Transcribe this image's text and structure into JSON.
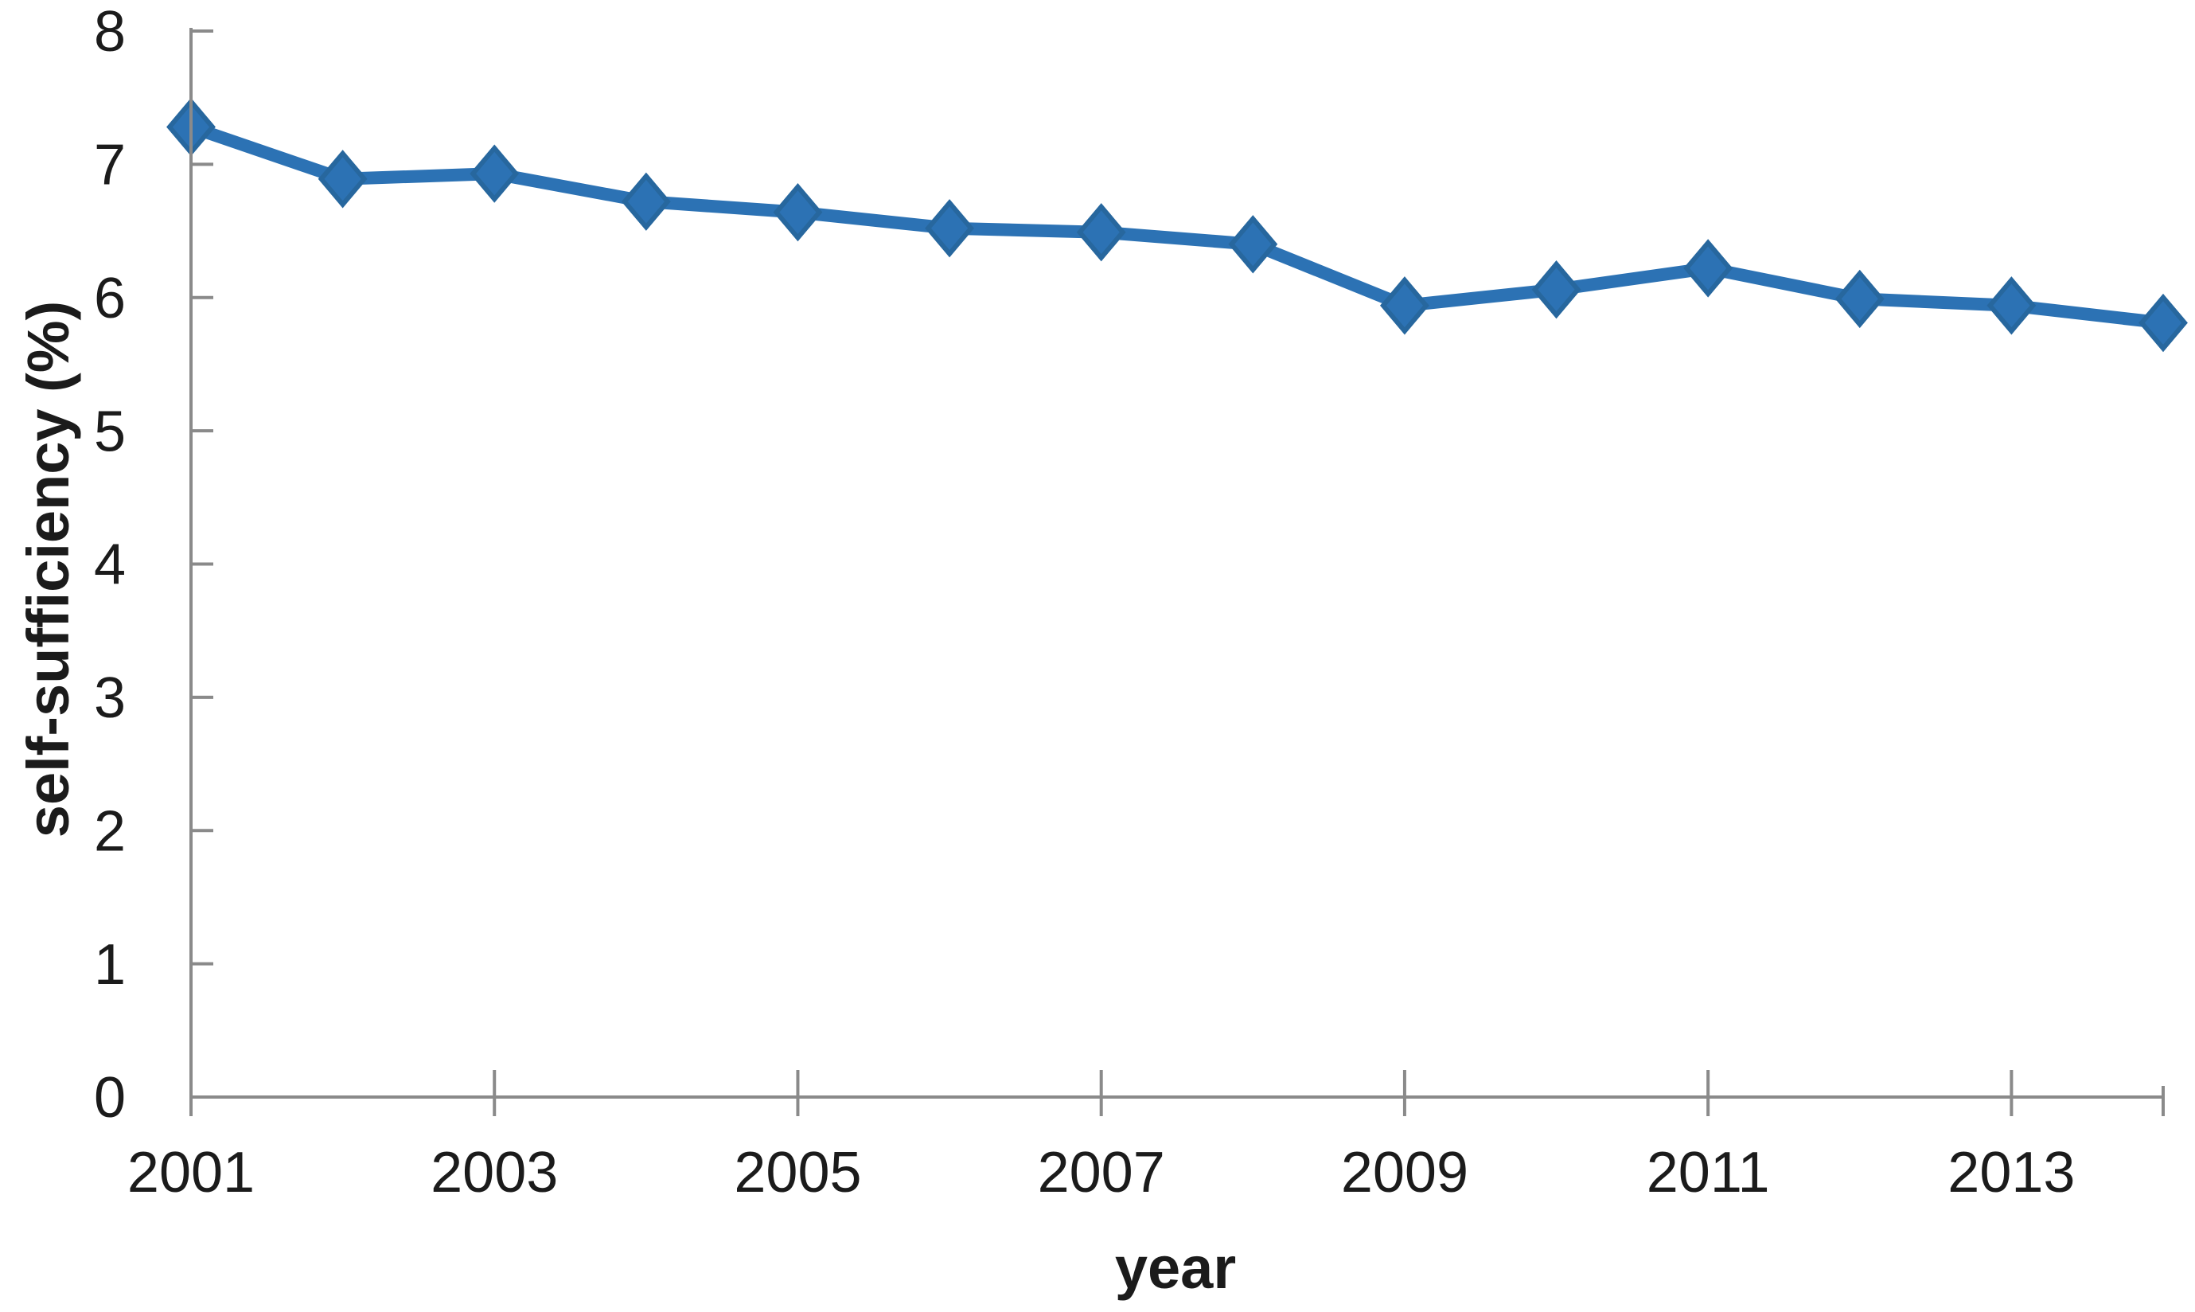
{
  "figure": {
    "background": "#ffffff"
  },
  "chart_data": {
    "type": "line",
    "title": "",
    "xlabel": "year",
    "ylabel": "self-sufficiency (%)",
    "x": [
      2001,
      2002,
      2003,
      2004,
      2005,
      2006,
      2007,
      2008,
      2009,
      2010,
      2011,
      2012,
      2013,
      2014
    ],
    "values": [
      7.28,
      6.89,
      6.93,
      6.72,
      6.64,
      6.52,
      6.49,
      6.4,
      5.94,
      6.06,
      6.22,
      5.99,
      5.94,
      5.81
    ],
    "series_count": 1,
    "ylim": [
      0,
      8
    ],
    "yticks": [
      0,
      1,
      2,
      3,
      4,
      5,
      6,
      7,
      8
    ],
    "xtick_labels": [
      "2001",
      "2003",
      "2005",
      "2007",
      "2009",
      "2011",
      "2013"
    ],
    "grid": false,
    "legend": false,
    "marker": "diamond",
    "line_style": "solid",
    "colors": {
      "line": "#2C72B4",
      "marker": "#2C72B4",
      "marker_edge": "#27679E",
      "axis": "#8A8A8A",
      "text": "#1B1B1B"
    }
  }
}
